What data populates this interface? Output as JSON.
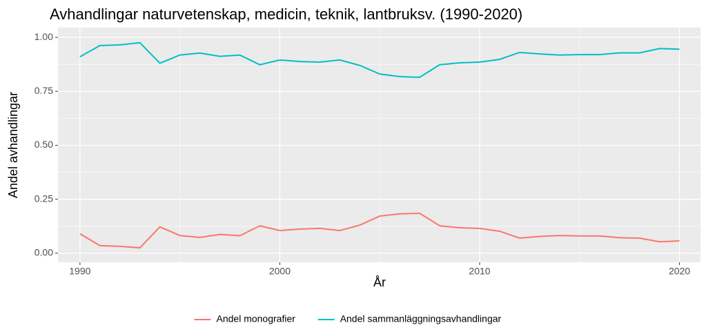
{
  "chart_data": {
    "type": "line",
    "title": "Avhandlingar naturvetenskap, medicin, teknik, lantbruksv. (1990-2020)",
    "xlabel": "År",
    "ylabel": "Andel avhandlingar",
    "x": [
      1990,
      1991,
      1992,
      1993,
      1994,
      1995,
      1996,
      1997,
      1998,
      1999,
      2000,
      2001,
      2002,
      2003,
      2004,
      2005,
      2006,
      2007,
      2008,
      2009,
      2010,
      2011,
      2012,
      2013,
      2014,
      2015,
      2016,
      2017,
      2018,
      2019,
      2020
    ],
    "series": [
      {
        "name": "Andel monografier",
        "color": "#f8766d",
        "values": [
          0.09,
          0.035,
          0.032,
          0.025,
          0.122,
          0.082,
          0.073,
          0.087,
          0.081,
          0.127,
          0.105,
          0.112,
          0.115,
          0.105,
          0.13,
          0.172,
          0.182,
          0.185,
          0.127,
          0.118,
          0.115,
          0.102,
          0.07,
          0.078,
          0.082,
          0.08,
          0.08,
          0.072,
          0.07,
          0.053,
          0.057
        ]
      },
      {
        "name": "Andel sammanläggningsavhandlingar",
        "color": "#00bfc4",
        "values": [
          0.91,
          0.962,
          0.965,
          0.975,
          0.88,
          0.918,
          0.927,
          0.912,
          0.918,
          0.873,
          0.895,
          0.888,
          0.885,
          0.895,
          0.87,
          0.83,
          0.818,
          0.815,
          0.873,
          0.882,
          0.885,
          0.898,
          0.93,
          0.923,
          0.918,
          0.92,
          0.92,
          0.928,
          0.928,
          0.948,
          0.945
        ]
      }
    ],
    "xlim": [
      1988.9,
      2021.05
    ],
    "xticks": [
      1990,
      2000,
      2010,
      2020
    ],
    "xminor": [
      1995,
      2005,
      2015
    ],
    "ylim": [
      -0.042,
      1.045
    ],
    "yticks": [
      {
        "value": 0,
        "label": "0.00"
      },
      {
        "value": 0.25,
        "label": "0.25"
      },
      {
        "value": 0.5,
        "label": "0.50"
      },
      {
        "value": 0.75,
        "label": "0.75"
      },
      {
        "value": 1,
        "label": "1.00"
      }
    ],
    "yminor": [
      0.125,
      0.375,
      0.625,
      0.875
    ],
    "grid": true,
    "legend": "bottom"
  }
}
